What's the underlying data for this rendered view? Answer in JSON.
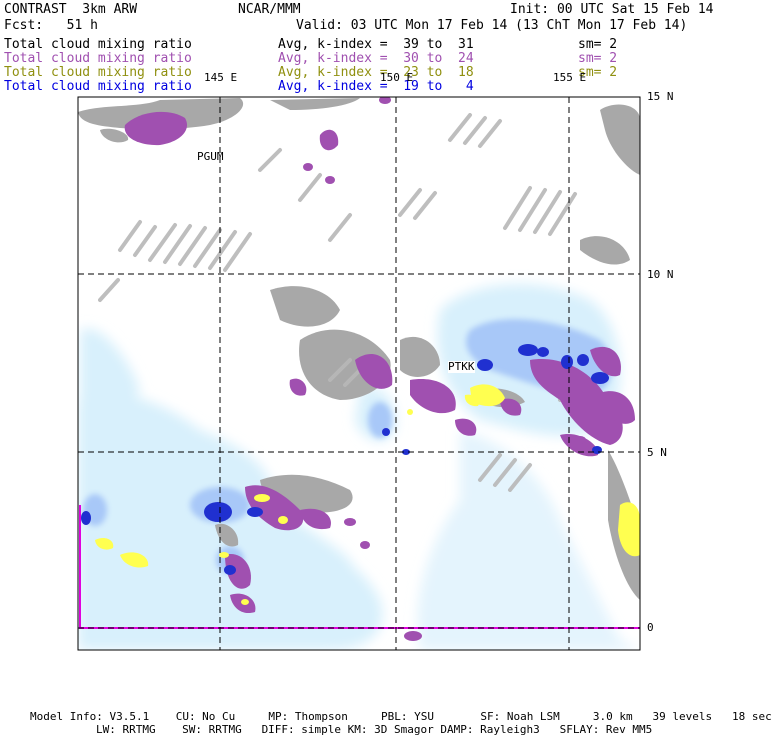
{
  "header": {
    "left_title": "CONTRAST  3km ARW",
    "center_title": "NCAR/MMM",
    "init": "Init: 00 UTC Sat 15 Feb 14",
    "fcst": "Fcst:   51 h",
    "valid": "Valid: 03 UTC Mon 17 Feb 14 (13 ChT Mon 17 Feb 14)"
  },
  "fields": [
    {
      "name": "Total cloud mixing ratio",
      "range": "Avg, k-index =  39 to  31",
      "sm": "sm= 2",
      "color": "#000000"
    },
    {
      "name": "Total cloud mixing ratio",
      "range": "Avg, k-index =  30 to  24",
      "sm": "sm= 2",
      "color": "#a050b0"
    },
    {
      "name": "Total cloud mixing ratio",
      "range": "Avg, k-index =  23 to  18",
      "sm": "sm= 2",
      "color": "#909010"
    },
    {
      "name": "Total cloud mixing ratio",
      "range": "Avg, k-index =  19 to   4",
      "sm": "",
      "color": "#0000e0"
    }
  ],
  "map": {
    "lon_labels": [
      "145 E",
      "150 E",
      "155 E"
    ],
    "lat_labels": [
      "15 N",
      "10 N",
      "5 N",
      "0"
    ],
    "stations": [
      "PGUM",
      "PTKK"
    ],
    "colors": {
      "gray_cloud": "#a8a8a8",
      "purple_cloud": "#a050b0",
      "light_blue": "#d8f0fc",
      "mid_blue": "#a8c8f8",
      "dark_blue": "#2030d0",
      "yellow": "#ffff50",
      "magenta_line": "#e000e0"
    }
  },
  "footer": {
    "line1": "Model Info: V3.5.1    CU: No Cu     MP: Thompson     PBL: YSU       SF: Noah LSM     3.0 km   39 levels   18 sec",
    "line2": "LW: RRTMG    SW: RRTMG   DIFF: simple KM: 3D Smagor DAMP: Rayleigh3   SFLAY: Rev MM5"
  }
}
